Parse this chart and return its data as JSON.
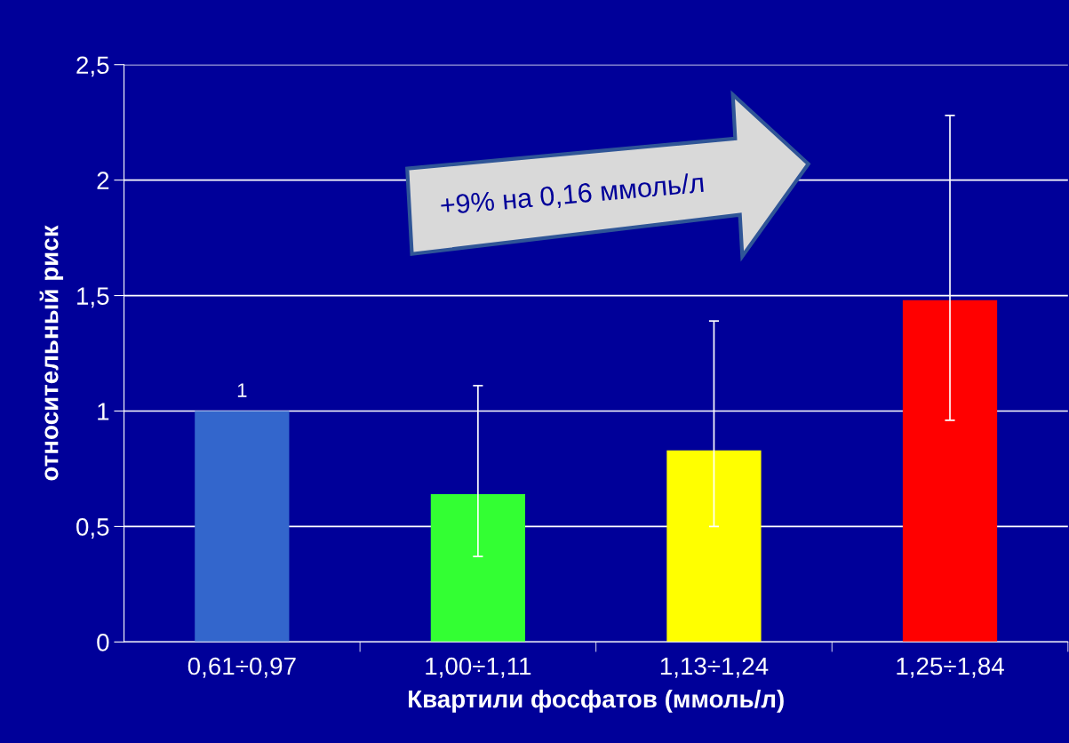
{
  "chart_data": {
    "type": "bar",
    "xlabel": "Квартили фосфатов (ммоль/л)",
    "ylabel": "относительный риск",
    "categories": [
      "0,61÷0,97",
      "1,00÷1,11",
      "1,13÷1,24",
      "1,25÷1,84"
    ],
    "values": [
      1,
      0.64,
      0.83,
      1.48
    ],
    "colors": [
      "#3366cc",
      "#33ff33",
      "#ffff00",
      "#ff0000"
    ],
    "errors": [
      null,
      [
        0.37,
        1.11
      ],
      [
        0.5,
        1.39
      ],
      [
        0.96,
        2.28
      ]
    ],
    "value_labels": [
      "1",
      null,
      null,
      null
    ],
    "ylim": [
      0,
      2.5
    ],
    "yticks": [
      {
        "value": 0,
        "label": "0"
      },
      {
        "value": 0.5,
        "label": "0,5"
      },
      {
        "value": 1,
        "label": "1"
      },
      {
        "value": 1.5,
        "label": "1,5"
      },
      {
        "value": 2,
        "label": "2"
      },
      {
        "value": 2.5,
        "label": "2,5"
      }
    ],
    "grid": "y",
    "annotations": [
      "+9% на 0,16 ммоль/л"
    ]
  }
}
